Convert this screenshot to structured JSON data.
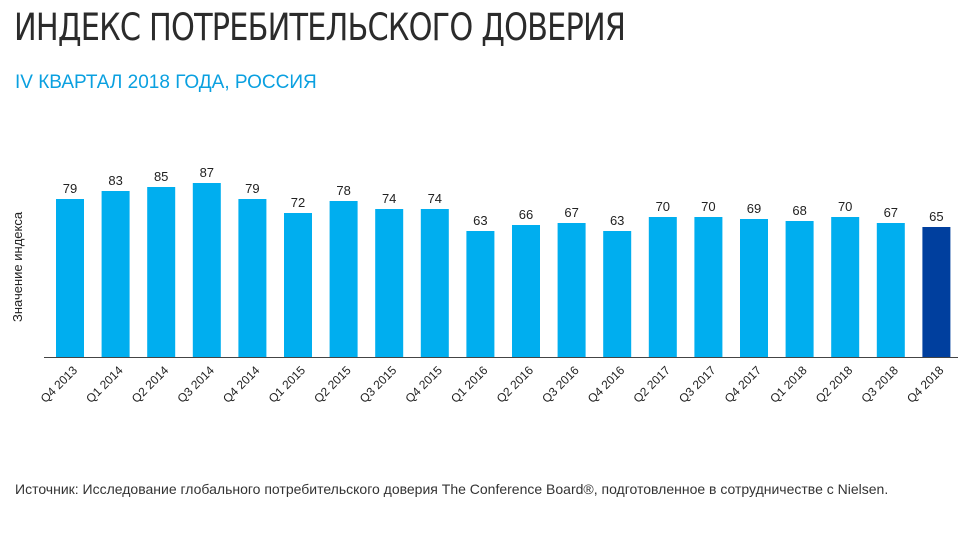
{
  "title": "ИНДЕКС ПОТРЕБИТЕЛЬСКОГО ДОВЕРИЯ",
  "subtitle": "IV КВАРТАЛ 2018 ГОДА, РОССИЯ",
  "source": "Источник: Исследование глобального потребительского доверия The Conference Board®, подготовленное в сотрудничестве с Nielsen.",
  "colors": {
    "bar": "#00aeef",
    "highlight": "#003f9e",
    "title": "#2b2b2b",
    "subtitle": "#0aa0e0"
  },
  "chart_data": {
    "type": "bar",
    "ylabel": "Значение индекса",
    "categories": [
      "Q4 2013",
      "Q1 2014",
      "Q2 2014",
      "Q3 2014",
      "Q4 2014",
      "Q1 2015",
      "Q2 2015",
      "Q3 2015",
      "Q4 2015",
      "Q1 2016",
      "Q2 2016",
      "Q3 2016",
      "Q4 2016",
      "Q2 2017",
      "Q3 2017",
      "Q4 2017",
      "Q1 2018",
      "Q2 2018",
      "Q3 2018",
      "Q4 2018"
    ],
    "values": [
      79,
      83,
      85,
      87,
      79,
      72,
      78,
      74,
      74,
      63,
      66,
      67,
      63,
      70,
      70,
      69,
      68,
      70,
      67,
      65
    ],
    "highlighted_category": "Q4 2018",
    "ylim": [
      0,
      100
    ],
    "grid": false
  }
}
